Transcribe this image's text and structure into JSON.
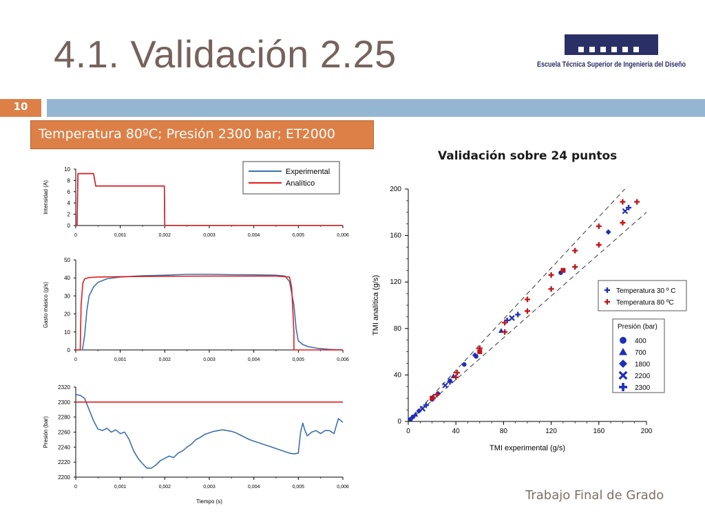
{
  "slide": {
    "title": "4.1. Validación 2.25",
    "number": "10",
    "subtitle": "Temperatura 80ºC; Presión 2300 bar; ET2000",
    "validation_title": "Validación sobre 24 puntos",
    "footer": "Trabajo Final de Grado",
    "logo_text": "Escuela Técnica Superior de Ingeniería del Diseño"
  },
  "colors": {
    "accent": "#dd8047",
    "rule": "#94b6d2",
    "title": "#76625c",
    "experimental": "#3d6fae",
    "analitico": "#e31b1b",
    "marker_30": "#1f2db8",
    "marker_80": "#c1161b"
  },
  "chart_data": [
    {
      "type": "line",
      "ylabel": "Intensidad (A)",
      "xlabel": "",
      "xlim": [
        0,
        0.006
      ],
      "ylim": [
        0,
        10
      ],
      "xticks": [
        "0",
        "0,001",
        "0,002",
        "0,003",
        "0,004",
        "0,005",
        "0,006"
      ],
      "yticks": [
        "0",
        "2",
        "4",
        "6",
        "8",
        "10"
      ],
      "legend": [
        "Experimental",
        "Analítico"
      ],
      "legend_position": "top-right",
      "series": [
        {
          "name": "Experimental",
          "x": [
            0,
            3e-05,
            5e-05,
            0.0004,
            0.00045,
            0.00199,
            0.002,
            0.006
          ],
          "y": [
            0,
            0,
            9.2,
            9.2,
            7,
            7,
            0,
            0
          ]
        },
        {
          "name": "Analítico",
          "x": [
            0,
            3e-05,
            5e-05,
            0.0004,
            0.00045,
            0.00199,
            0.002,
            0.006
          ],
          "y": [
            0,
            0,
            9.2,
            9.2,
            7,
            7,
            0,
            0
          ]
        }
      ]
    },
    {
      "type": "line",
      "ylabel": "Gasto másico (g/s)",
      "xlabel": "",
      "xlim": [
        0,
        0.006
      ],
      "ylim": [
        0,
        50
      ],
      "xticks": [
        "0",
        "0,001",
        "0,002",
        "0,003",
        "0,004",
        "0,005",
        "0,006"
      ],
      "yticks": [
        "0",
        "10",
        "20",
        "30",
        "40",
        "50"
      ],
      "series": [
        {
          "name": "Experimental",
          "x": [
            0,
            0.00015,
            0.0002,
            0.00025,
            0.0003,
            0.0004,
            0.0005,
            0.0007,
            0.001,
            0.0015,
            0.002,
            0.0025,
            0.003,
            0.0035,
            0.004,
            0.0045,
            0.0047,
            0.0048,
            0.0049,
            0.00495,
            0.005,
            0.0051,
            0.0052,
            0.0054,
            0.0057,
            0.006
          ],
          "y": [
            0,
            0,
            8,
            22,
            30,
            35,
            37.5,
            39.5,
            40.5,
            41.2,
            41.5,
            42,
            42,
            41.8,
            41.7,
            41.5,
            41,
            38,
            25,
            12,
            5,
            3,
            2,
            1,
            0.3,
            0
          ]
        },
        {
          "name": "Analítico",
          "x": [
            0,
            0.0001,
            0.00012,
            0.00016,
            0.0002,
            0.0003,
            0.0005,
            0.001,
            0.002,
            0.003,
            0.0045,
            0.0048,
            0.00485,
            0.0049,
            0.0049,
            0.0051,
            0.006
          ],
          "y": [
            0,
            0,
            25,
            37,
            39.5,
            40.2,
            40.5,
            40.7,
            40.9,
            41,
            41,
            40.5,
            35,
            10,
            0,
            0,
            0
          ]
        }
      ]
    },
    {
      "type": "line",
      "ylabel": "Presión (bar)",
      "xlabel": "Tiempo (s)",
      "xlim": [
        0,
        0.006
      ],
      "ylim": [
        2200,
        2320
      ],
      "xticks": [
        "0",
        "0,001",
        "0,002",
        "0,003",
        "0,004",
        "0,005",
        "0,006"
      ],
      "yticks": [
        "2200",
        "2220",
        "2240",
        "2260",
        "2280",
        "2300",
        "2320"
      ],
      "series": [
        {
          "name": "Experimental",
          "x": [
            0,
            0.0001,
            0.0002,
            0.0003,
            0.0004,
            0.0005,
            0.0006,
            0.0007,
            0.0008,
            0.0009,
            0.001,
            0.0011,
            0.0012,
            0.0013,
            0.0014,
            0.0015,
            0.0016,
            0.0017,
            0.0018,
            0.0019,
            0.002,
            0.0021,
            0.0022,
            0.0023,
            0.0024,
            0.0025,
            0.0026,
            0.0027,
            0.0028,
            0.0029,
            0.003,
            0.0031,
            0.0032,
            0.0033,
            0.0034,
            0.0035,
            0.0036,
            0.0037,
            0.0038,
            0.0039,
            0.004,
            0.0041,
            0.0042,
            0.0043,
            0.0044,
            0.0045,
            0.0046,
            0.0047,
            0.0048,
            0.0049,
            0.005,
            0.00505,
            0.0051,
            0.00515,
            0.0052,
            0.0053,
            0.0054,
            0.0055,
            0.0056,
            0.0057,
            0.0058,
            0.0059,
            0.006
          ],
          "y": [
            2310,
            2309,
            2305,
            2290,
            2275,
            2264,
            2262,
            2265,
            2260,
            2263,
            2258,
            2260,
            2250,
            2235,
            2225,
            2218,
            2212,
            2212,
            2216,
            2222,
            2225,
            2228,
            2226,
            2232,
            2235,
            2240,
            2244,
            2250,
            2253,
            2257,
            2259,
            2261,
            2262,
            2263,
            2262,
            2261,
            2259,
            2256,
            2253,
            2250,
            2248,
            2246,
            2244,
            2242,
            2240,
            2238,
            2236,
            2234,
            2232,
            2231,
            2232,
            2260,
            2272,
            2262,
            2255,
            2260,
            2262,
            2258,
            2262,
            2262,
            2258,
            2278,
            2273
          ]
        },
        {
          "name": "Analítico",
          "x": [
            0,
            0.006
          ],
          "y": [
            2300,
            2300
          ]
        }
      ]
    },
    {
      "type": "scatter",
      "xlabel": "TMI experimental (g/s)",
      "ylabel": "TMI analítica (g/s)",
      "xlim": [
        0,
        200
      ],
      "ylim": [
        0,
        200
      ],
      "xticks": [
        "0",
        "40",
        "80",
        "120",
        "160",
        "200"
      ],
      "yticks": [
        "0",
        "40",
        "80",
        "120",
        "160",
        "200"
      ],
      "legend_temperature": [
        "Temperatura 30 º C",
        "Temperatura 80 ºC"
      ],
      "legend_pressure_title": "Presión (bar)",
      "legend_pressure": [
        "400",
        "700",
        "1800",
        "2200",
        "2300"
      ],
      "reference_lines": [
        {
          "slope": 0.9
        },
        {
          "slope": 1.1
        }
      ],
      "series": [
        {
          "name": "Temperatura 30 º C",
          "points": [
            {
              "x": 2,
              "y": 2,
              "p": "400"
            },
            {
              "x": 4,
              "y": 4,
              "p": "400"
            },
            {
              "x": 20,
              "y": 19,
              "p": "400"
            },
            {
              "x": 35,
              "y": 35,
              "p": "400"
            },
            {
              "x": 47,
              "y": 49,
              "p": "400"
            },
            {
              "x": 57,
              "y": 56,
              "p": "400"
            },
            {
              "x": 128,
              "y": 128,
              "p": "400"
            },
            {
              "x": 6,
              "y": 6,
              "p": "700"
            },
            {
              "x": 21,
              "y": 21,
              "p": "700"
            },
            {
              "x": 38,
              "y": 39,
              "p": "700"
            },
            {
              "x": 78,
              "y": 78,
              "p": "700"
            },
            {
              "x": 9,
              "y": 9,
              "p": "1800"
            },
            {
              "x": 25,
              "y": 24,
              "p": "1800"
            },
            {
              "x": 56,
              "y": 57,
              "p": "1800"
            },
            {
              "x": 168,
              "y": 163,
              "p": "1800"
            },
            {
              "x": 12,
              "y": 11,
              "p": "2200"
            },
            {
              "x": 31,
              "y": 31,
              "p": "2200"
            },
            {
              "x": 87,
              "y": 89,
              "p": "2200"
            },
            {
              "x": 182,
              "y": 181,
              "p": "2200"
            },
            {
              "x": 15,
              "y": 14,
              "p": "2300"
            },
            {
              "x": 35,
              "y": 34,
              "p": "2300"
            },
            {
              "x": 83,
              "y": 87,
              "p": "2300"
            },
            {
              "x": 92,
              "y": 92,
              "p": "2300"
            },
            {
              "x": 185,
              "y": 184,
              "p": "2300"
            }
          ]
        },
        {
          "name": "Temperatura 80 ºC",
          "points": [
            {
              "x": 20,
              "y": 20,
              "p": "400"
            },
            {
              "x": 60,
              "y": 60,
              "p": "400"
            },
            {
              "x": 130,
              "y": 130,
              "p": "400"
            },
            {
              "x": 24,
              "y": 23,
              "p": "2300"
            },
            {
              "x": 40,
              "y": 38,
              "p": "2300"
            },
            {
              "x": 41,
              "y": 42,
              "p": "2300"
            },
            {
              "x": 60,
              "y": 63,
              "p": "2300"
            },
            {
              "x": 81,
              "y": 77,
              "p": "2300"
            },
            {
              "x": 81,
              "y": 85,
              "p": "2300"
            },
            {
              "x": 100,
              "y": 95,
              "p": "2300"
            },
            {
              "x": 100,
              "y": 105,
              "p": "2300"
            },
            {
              "x": 120,
              "y": 114,
              "p": "2300"
            },
            {
              "x": 120,
              "y": 126,
              "p": "2300"
            },
            {
              "x": 140,
              "y": 133,
              "p": "2300"
            },
            {
              "x": 140,
              "y": 147,
              "p": "2300"
            },
            {
              "x": 160,
              "y": 152,
              "p": "2300"
            },
            {
              "x": 160,
              "y": 168,
              "p": "2300"
            },
            {
              "x": 180,
              "y": 171,
              "p": "2300"
            },
            {
              "x": 180,
              "y": 189,
              "p": "2300"
            },
            {
              "x": 192,
              "y": 189,
              "p": "2300"
            }
          ]
        }
      ]
    }
  ]
}
